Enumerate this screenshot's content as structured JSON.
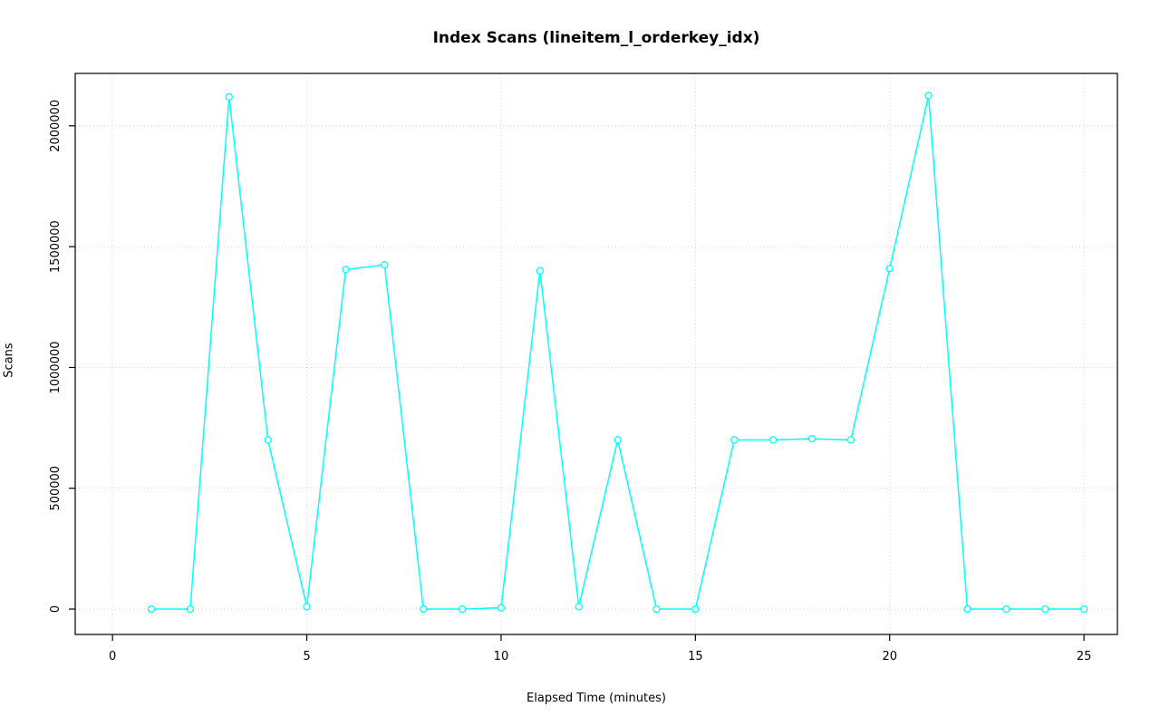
{
  "chart_data": {
    "type": "line",
    "title": "Index Scans (lineitem_l_orderkey_idx)",
    "xlabel": "Elapsed Time (minutes)",
    "ylabel": "Scans",
    "x": [
      1,
      2,
      3,
      4,
      5,
      6,
      7,
      8,
      9,
      10,
      11,
      12,
      13,
      14,
      15,
      16,
      17,
      18,
      19,
      20,
      21,
      22,
      23,
      24,
      25
    ],
    "values": [
      0,
      0,
      2120000,
      700000,
      10000,
      1405000,
      1425000,
      0,
      0,
      5000,
      1400000,
      10000,
      700000,
      0,
      0,
      700000,
      700000,
      705000,
      700000,
      1410000,
      2125000,
      0,
      0,
      0,
      0
    ],
    "x_ticks": [
      0,
      5,
      10,
      15,
      20,
      25
    ],
    "x_tick_labels": [
      "0",
      "5",
      "10",
      "15",
      "20",
      "25"
    ],
    "y_ticks": [
      0,
      500000,
      1000000,
      1500000,
      2000000
    ],
    "y_tick_labels": [
      "0",
      "500000",
      "1000000",
      "1500000",
      "2000000"
    ],
    "xlim": [
      -0.96,
      25.86
    ],
    "ylim": [
      -105000,
      2217000
    ],
    "grid": true,
    "legend_position": "none",
    "marker": "open-circle",
    "series_color": "#00FFFF",
    "grid_color": "#D3D3D3",
    "box_color": "#000000"
  }
}
